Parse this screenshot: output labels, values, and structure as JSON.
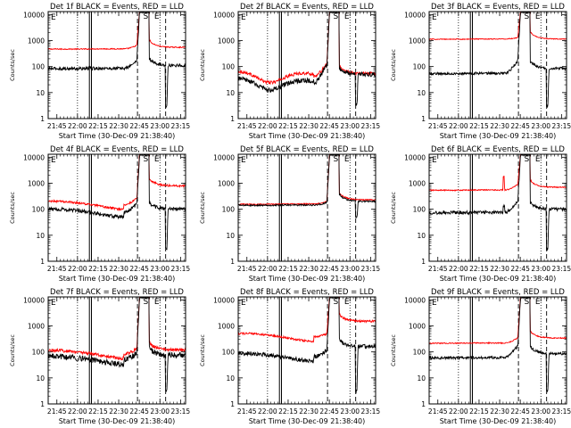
{
  "chart_data": {
    "type": "line",
    "x_axis": {
      "label": "Start Time (30-Dec-09 21:38:40)",
      "ticks": [
        "21:45",
        "22:00",
        "22:15",
        "22:30",
        "22:45",
        "23:00",
        "23:15"
      ],
      "tick_minutes": [
        6.33,
        21.33,
        36.33,
        51.33,
        66.33,
        81.33,
        96.33
      ],
      "range_minutes": [
        0,
        100
      ]
    },
    "y_axis": {
      "label": "Counts/sec",
      "scale": "log",
      "ticks": [
        "1",
        "10",
        "100",
        "1000",
        "10000"
      ],
      "tick_values": [
        1,
        10,
        100,
        1000,
        10000
      ],
      "range": [
        1,
        13000
      ]
    },
    "series_legend": {
      "events_color": "#000000",
      "lld_color": "#ff0000"
    },
    "markers": {
      "dotted_minutes": [
        21.33,
        81.33
      ],
      "solid_pair_minutes": [
        30.0,
        31.5
      ],
      "dashed_minutes": [
        65.0,
        85.5
      ],
      "top_labels": [
        {
          "text": "S",
          "at_minute": 71.0
        },
        {
          "text": "E",
          "at_minute": 79.0
        }
      ]
    },
    "panels": [
      {
        "title": "Det 1f BLACK = Events, RED = LLD",
        "events": {
          "base": 85,
          "shape": "flat",
          "pre_flare": 170,
          "peak": 12000,
          "post": 110,
          "dip": 3,
          "noise": 0.06,
          "steps": [
            {
              "minute": 30.5,
              "value": 95
            }
          ]
        },
        "lld": {
          "base": 480,
          "shape": "flat",
          "pre_flare": 650,
          "peak": 13000,
          "post": 550,
          "dip": null,
          "noise": 0.02,
          "steps": []
        },
        "left_glyph": "E"
      },
      {
        "title": "Det 2f BLACK = Events, RED = LLD",
        "events": {
          "base": 22,
          "shape": "wave",
          "pre_flare": 110,
          "peak": 12000,
          "post": 50,
          "dip": 3,
          "noise": 0.09,
          "steps": []
        },
        "lld": {
          "base": 42,
          "shape": "wave",
          "pre_flare": 120,
          "peak": 13000,
          "post": 55,
          "dip": null,
          "noise": 0.06,
          "steps": []
        },
        "left_glyph": "E"
      },
      {
        "title": "Det 3f BLACK = Events, RED = LLD",
        "events": {
          "base": 55,
          "shape": "flat",
          "pre_flare": 160,
          "peak": 12000,
          "post": 85,
          "dip": 3,
          "noise": 0.05,
          "steps": []
        },
        "lld": {
          "base": 1150,
          "shape": "flat",
          "pre_flare": 1300,
          "peak": 13000,
          "post": 1150,
          "dip": null,
          "noise": 0.015,
          "steps": []
        },
        "left_glyph": "E"
      },
      {
        "title": "Det 4f BLACK = Events, RED = LLD",
        "events": {
          "base": 75,
          "shape": "hump",
          "pre_flare": 160,
          "peak": 12000,
          "post": 100,
          "dip": 3,
          "noise": 0.07,
          "steps": []
        },
        "lld": {
          "base": 150,
          "shape": "hump",
          "pre_flare": 260,
          "peak": 13000,
          "post": 800,
          "dip": null,
          "noise": 0.04,
          "steps": []
        },
        "left_glyph": "E"
      },
      {
        "title": "Det 5f BLACK = Events, RED = LLD",
        "events": {
          "base": 145,
          "shape": "flat",
          "pre_flare": 180,
          "peak": 12000,
          "post": 200,
          "dip": 50,
          "noise": 0.03,
          "steps": []
        },
        "lld": {
          "base": 160,
          "shape": "flat",
          "pre_flare": 200,
          "peak": 13000,
          "post": 230,
          "dip": null,
          "noise": 0.02,
          "steps": []
        },
        "left_glyph": "E"
      },
      {
        "title": "Det 6f BLACK = Events, RED = LLD",
        "events": {
          "base": 75,
          "shape": "flat",
          "pre_flare": 200,
          "peak": 12000,
          "post": 100,
          "dip": 3,
          "noise": 0.06,
          "steps": [
            {
              "minute": 54.5,
              "value": 130
            }
          ]
        },
        "lld": {
          "base": 550,
          "shape": "flat",
          "pre_flare": 900,
          "peak": 13000,
          "post": 700,
          "dip": null,
          "noise": 0.02,
          "steps": [
            {
              "minute": 54.5,
              "value": 1800
            },
            {
              "minute": 55.5,
              "value": 720
            }
          ]
        },
        "left_glyph": "E"
      },
      {
        "title": "Det 7f BLACK = Events, RED = LLD",
        "events": {
          "base": 50,
          "shape": "hump",
          "pre_flare": 90,
          "peak": 12000,
          "post": 75,
          "dip": 3,
          "noise": 0.11,
          "steps": []
        },
        "lld": {
          "base": 85,
          "shape": "hump",
          "pre_flare": 130,
          "peak": 13000,
          "post": 120,
          "dip": null,
          "noise": 0.06,
          "steps": []
        },
        "left_glyph": "E"
      },
      {
        "title": "Det 8f BLACK = Events, RED = LLD",
        "events": {
          "base": 65,
          "shape": "hump",
          "pre_flare": 120,
          "peak": 12000,
          "post": 160,
          "dip": 3,
          "noise": 0.08,
          "steps": []
        },
        "lld": {
          "base": 380,
          "shape": "hump",
          "pre_flare": 500,
          "peak": 13000,
          "post": 1500,
          "dip": null,
          "noise": 0.04,
          "steps": []
        },
        "left_glyph": "E"
      },
      {
        "title": "Det 9f BLACK = Events, RED = LLD",
        "events": {
          "base": 60,
          "shape": "flat",
          "pre_flare": 170,
          "peak": 12000,
          "post": 85,
          "dip": 3,
          "noise": 0.05,
          "steps": []
        },
        "lld": {
          "base": 220,
          "shape": "flat",
          "pre_flare": 350,
          "peak": 13000,
          "post": 340,
          "dip": null,
          "noise": 0.02,
          "steps": []
        },
        "left_glyph": "E"
      }
    ]
  }
}
